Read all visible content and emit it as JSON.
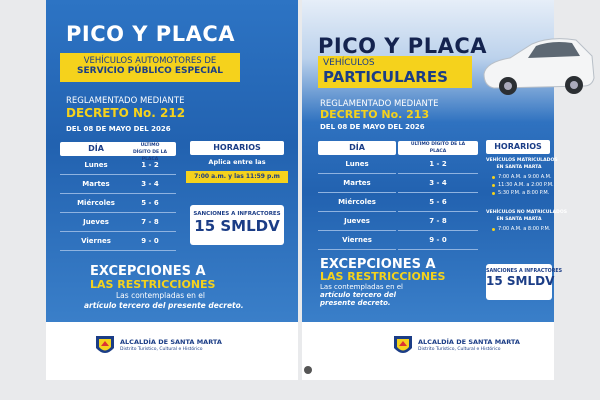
{
  "posters": [
    {
      "title": "PICO Y PLACA",
      "subtitle_lines": [
        "VEHÍCULOS AUTOMOTORES DE",
        "SERVICIO PÚBLICO ESPECIAL"
      ],
      "decree": {
        "intro": "REGLAMENTADO MEDIANTE",
        "number": "DECRETO No. 212",
        "date": "DEL 08 DE MAYO DEL 2026"
      },
      "table": {
        "headers": [
          "DÍA",
          "ÚLTIMO DÍGITO DE LA PLACA"
        ],
        "rows": [
          [
            "Lunes",
            "1 - 2"
          ],
          [
            "Martes",
            "3 - 4"
          ],
          [
            "Miércoles",
            "5 - 6"
          ],
          [
            "Jueves",
            "7 - 8"
          ],
          [
            "Viernes",
            "9 - 0"
          ]
        ]
      },
      "schedule": {
        "title": "HORARIOS",
        "text": "Aplica entre las",
        "hours": "7:00 a.m. y las 11:59 p.m"
      },
      "sanctions": {
        "label": "SANCIONES A INFRACTORES",
        "value": "15 SMLDV"
      },
      "exceptions": {
        "title_lines": [
          "EXCEPCIONES A",
          "LAS RESTRICCIONES"
        ],
        "text_lines": [
          "Las contempladas en el",
          "artículo tercero del presente decreto."
        ]
      },
      "footer": {
        "name": "ALCALDÍA DE SANTA MARTA",
        "tagline": "Distrito Turístico, Cultural e Histórico"
      }
    },
    {
      "title": "PICO Y PLACA",
      "subtitle_lines": [
        "VEHÍCULOS",
        "PARTICULARES"
      ],
      "decree": {
        "intro": "REGLAMENTADO MEDIANTE",
        "number": "DECRETO No. 213",
        "date": "DEL 08 DE MAYO DEL 2026"
      },
      "table": {
        "headers": [
          "DÍA",
          "ÚLTIMO DÍGITO DE LA PLACA"
        ],
        "rows": [
          [
            "Lunes",
            "1 - 2"
          ],
          [
            "Martes",
            "3 - 4"
          ],
          [
            "Miércoles",
            "5 - 6"
          ],
          [
            "Jueves",
            "7 - 8"
          ],
          [
            "Viernes",
            "9 - 0"
          ]
        ]
      },
      "schedule": {
        "title": "HORARIOS",
        "groups": [
          {
            "heading_lines": [
              "VEHÍCULOS MATRICULADOS",
              "EN SANTA MARTA"
            ],
            "times": [
              "7:00 A.M. a 9:00 A.M.",
              "11:30 A.M. a 2:00 P.M.",
              "5:30 P.M. a 8:00 P.M."
            ]
          },
          {
            "heading_lines": [
              "VEHÍCULOS NO MATRICULADOS",
              "EN SANTA MARTA"
            ],
            "times": [
              "7:00 A.M. a 8:00 P.M."
            ]
          }
        ]
      },
      "sanctions": {
        "label": "SANCIONES A INFRACTORES",
        "value": "15 SMLDV"
      },
      "exceptions": {
        "title_lines": [
          "EXCEPCIONES A",
          "LAS RESTRICCIONES"
        ],
        "text_lines": [
          "Las contempladas en el",
          "artículo tercero del",
          "presente decreto."
        ]
      },
      "footer": {
        "name": "ALCALDÍA DE SANTA MARTA",
        "tagline": "Distrito Turístico, Cultural e Histórico"
      }
    }
  ]
}
